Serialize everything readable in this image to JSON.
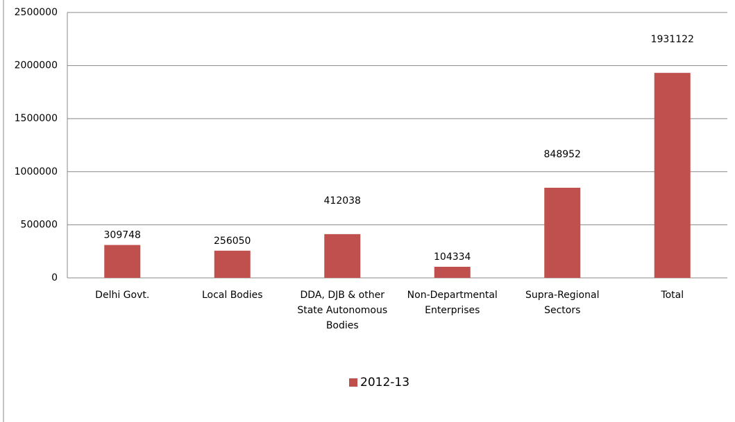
{
  "chart_data": {
    "type": "bar",
    "categories": [
      "Delhi Govt.",
      "Local Bodies",
      "DDA, DJB & other State Autonomous Bodies",
      "Non-Departmental Enterprises",
      "Supra-Regional Sectors",
      "Total"
    ],
    "series": [
      {
        "name": "2012-13",
        "color": "#c0504d",
        "values": [
          309748,
          256050,
          412038,
          104334,
          848952,
          1931122
        ]
      }
    ],
    "ylim": [
      0,
      2500000
    ],
    "yticks": [
      0,
      500000,
      1000000,
      1500000,
      2000000,
      2500000
    ],
    "grid": true,
    "legend": "bottom"
  }
}
